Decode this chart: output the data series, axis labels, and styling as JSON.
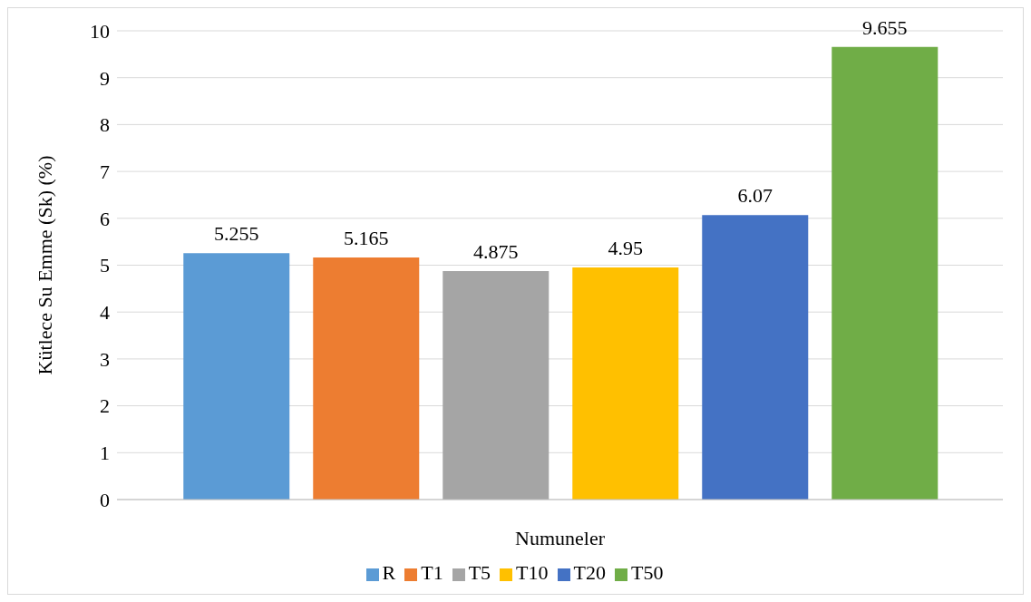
{
  "chart_data": {
    "type": "bar",
    "xlabel": "Numuneler",
    "ylabel": "Kütlece Su Emme (Sk) (%)",
    "categories": [
      null
    ],
    "series": [
      {
        "name": "R",
        "color": "#5b9bd5",
        "values": [
          5.255
        ]
      },
      {
        "name": "T1",
        "color": "#ed7d31",
        "values": [
          5.165
        ]
      },
      {
        "name": "T5",
        "color": "#a5a5a5",
        "values": [
          4.875
        ]
      },
      {
        "name": "T10",
        "color": "#ffc000",
        "values": [
          4.95
        ]
      },
      {
        "name": "T20",
        "color": "#4472c4",
        "values": [
          6.07
        ]
      },
      {
        "name": "T50",
        "color": "#70ad47",
        "values": [
          9.655
        ]
      }
    ],
    "ylim": [
      0,
      10
    ],
    "yticks": [
      0,
      1,
      2,
      3,
      4,
      5,
      6,
      7,
      8,
      9,
      10
    ],
    "grid": "y",
    "legend": "bottom",
    "data_labels": true
  }
}
